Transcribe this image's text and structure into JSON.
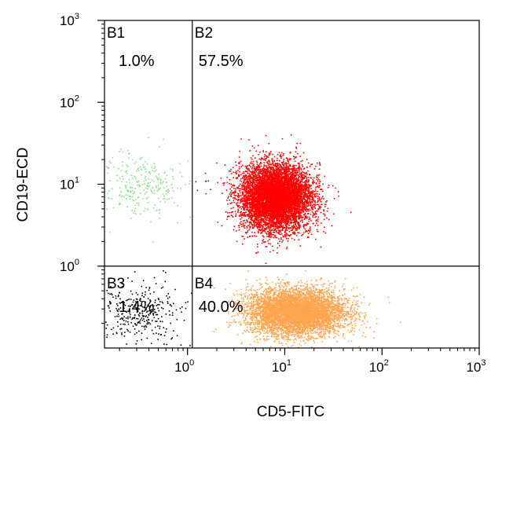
{
  "chart_data": {
    "type": "scatter",
    "title": "",
    "xlabel": "CD5-FITC",
    "ylabel": "CD19-ECD",
    "x_scale": "log",
    "y_scale": "log",
    "xlim": [
      0.14,
      1000
    ],
    "ylim": [
      0.1,
      1000
    ],
    "x_ticks": [
      {
        "base": "10",
        "exp": "0",
        "value": 1
      },
      {
        "base": "10",
        "exp": "1",
        "value": 10
      },
      {
        "base": "10",
        "exp": "2",
        "value": 100
      },
      {
        "base": "10",
        "exp": "3",
        "value": 1000
      }
    ],
    "y_ticks": [
      {
        "base": "10",
        "exp": "0",
        "value": 1
      },
      {
        "base": "10",
        "exp": "1",
        "value": 10
      },
      {
        "base": "10",
        "exp": "2",
        "value": 100
      },
      {
        "base": "10",
        "exp": "3",
        "value": 1000
      }
    ],
    "gates": {
      "x": 1.12,
      "y": 1.0
    },
    "quadrants": [
      {
        "name": "B1",
        "percent": "1.0%"
      },
      {
        "name": "B2",
        "percent": "57.5%"
      },
      {
        "name": "B3",
        "percent": "1.4%"
      },
      {
        "name": "B4",
        "percent": "40.0%"
      }
    ],
    "series": [
      {
        "quadrant": "B1",
        "color": "#8de08d",
        "count": 260,
        "center_x": 0.35,
        "center_y": 10,
        "spread_x": 0.2,
        "spread_y": 0.2
      },
      {
        "quadrant": "B2",
        "color": "#ff0000",
        "count": 7500,
        "center_x": 8,
        "center_y": 7,
        "spread_x": 0.18,
        "spread_y": 0.2
      },
      {
        "quadrant": "B3",
        "color": "#000000",
        "count": 320,
        "center_x": 0.33,
        "center_y": 0.28,
        "spread_x": 0.2,
        "spread_y": 0.18
      },
      {
        "quadrant": "B4",
        "color": "#ffa54f",
        "count": 6000,
        "center_x": 13,
        "center_y": 0.28,
        "spread_x": 0.25,
        "spread_y": 0.14
      },
      {
        "quadrant": "B2",
        "color": "#1e2fd0",
        "count": 14,
        "center_x": 1.8,
        "center_y": 9,
        "spread_x": 0.18,
        "spread_y": 0.12
      }
    ]
  }
}
